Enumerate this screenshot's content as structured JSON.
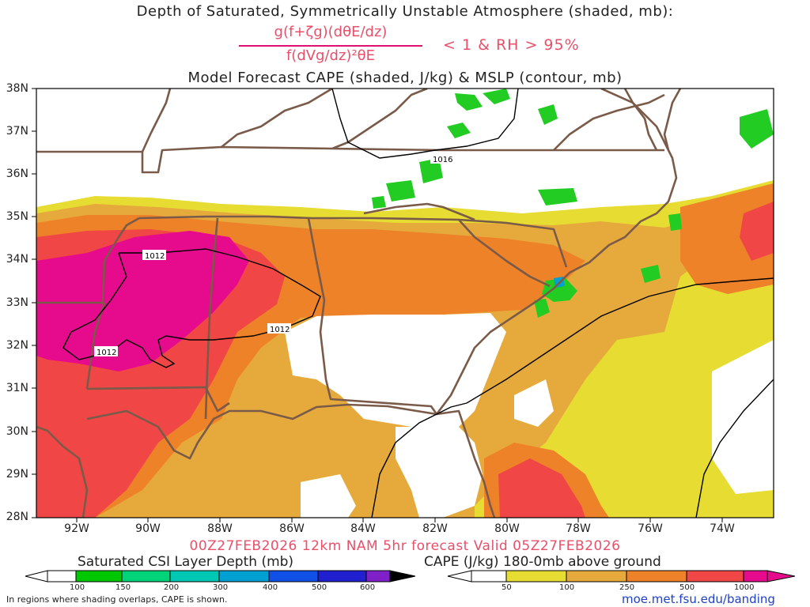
{
  "titles": {
    "line1": "Depth of Saturated, Symmetrically Unstable Atmosphere (shaded, mb):",
    "fraction_numerator": "g(f+ζg)(dθE/dz)",
    "fraction_denominator": "f(dVg/dz)²θE",
    "fraction_condition": "< 1 & RH > 95%",
    "line3": "Model Forecast CAPE (shaded, J/kg) & MSLP (contour, mb)",
    "valid": "00Z27FEB2026 12km NAM 5hr forecast Valid 05Z27FEB2026"
  },
  "axes": {
    "latitudes": [
      "38N",
      "37N",
      "36N",
      "35N",
      "34N",
      "33N",
      "32N",
      "31N",
      "30N",
      "29N",
      "28N"
    ],
    "longitudes": [
      "92W",
      "90W",
      "88W",
      "86W",
      "84W",
      "82W",
      "80W",
      "78W",
      "76W",
      "74W"
    ]
  },
  "contours": {
    "label_value": "1012",
    "labels": [
      "1012",
      "1012",
      "1012",
      "1016"
    ]
  },
  "colorbars": {
    "csi": {
      "title": "Saturated CSI Layer Depth (mb)",
      "labels": [
        "100",
        "150",
        "200",
        "300",
        "400",
        "500",
        "600"
      ],
      "colors": [
        "#00c800",
        "#00d47a",
        "#00c8b4",
        "#00a0d2",
        "#1050e6",
        "#2020d0",
        "#8020c8"
      ]
    },
    "cape": {
      "title": "CAPE (J/kg) 180-0mb above ground",
      "labels": [
        "50",
        "100",
        "250",
        "500",
        "1000"
      ],
      "colors": [
        "#e6dc32",
        "#e6aa3c",
        "#ee8228",
        "#f04646",
        "#e60a8c"
      ]
    }
  },
  "legend_colors": {
    "cape_50": "#e6dc32",
    "cape_100": "#e6aa3c",
    "cape_250": "#ee8228",
    "cape_500": "#f04646",
    "cape_1000": "#e60a8c",
    "csi_green": "#22cc22",
    "border": "#7a5a48"
  },
  "footer": {
    "note": "In regions where shading overlaps, CAPE is shown.",
    "credit": "moe.met.fsu.edu/banding"
  }
}
